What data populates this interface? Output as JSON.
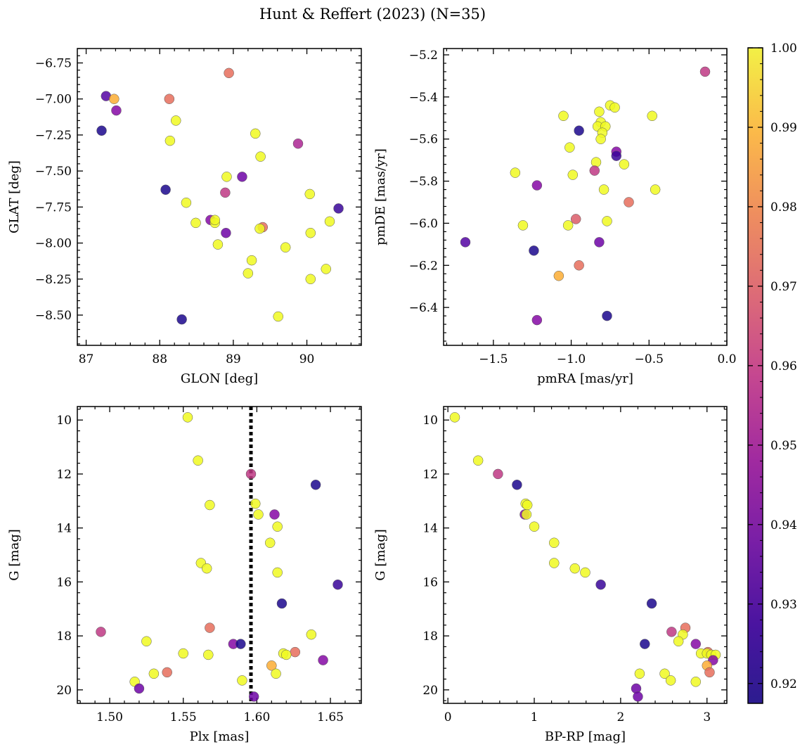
{
  "title": "Hunt & Reffert (2023) (N=35)",
  "chart_data": [
    {
      "type": "scatter",
      "xlabel": "GLON [deg]",
      "ylabel": "GLAT [deg]",
      "xlim": [
        86.88,
        90.74
      ],
      "ylim": [
        -8.71,
        -6.65
      ],
      "y_inverted": false,
      "xticks": [
        87,
        88,
        89,
        90
      ],
      "xtick_labels": [
        "87",
        "88",
        "89",
        "90"
      ],
      "yticks": [
        -8.5,
        -8.25,
        -8.0,
        -7.75,
        -7.5,
        -7.25,
        -7.0,
        -6.75
      ],
      "ytick_labels": [
        "−8.50",
        "−8.25",
        "−8.00",
        "−7.75",
        "−7.50",
        "−7.25",
        "−7.00",
        "−6.75"
      ],
      "points": [
        {
          "x": 87.27,
          "y": -6.98,
          "c": 0.93
        },
        {
          "x": 87.21,
          "y": -7.22,
          "c": 0.92
        },
        {
          "x": 87.38,
          "y": -7.0,
          "c": 0.985
        },
        {
          "x": 87.41,
          "y": -7.08,
          "c": 0.94
        },
        {
          "x": 88.13,
          "y": -7.0,
          "c": 0.97
        },
        {
          "x": 88.94,
          "y": -6.82,
          "c": 0.97
        },
        {
          "x": 88.22,
          "y": -7.15,
          "c": 1.0
        },
        {
          "x": 88.14,
          "y": -7.29,
          "c": 1.0
        },
        {
          "x": 89.3,
          "y": -7.24,
          "c": 1.0
        },
        {
          "x": 89.37,
          "y": -7.4,
          "c": 1.0
        },
        {
          "x": 89.88,
          "y": -7.31,
          "c": 0.95
        },
        {
          "x": 88.08,
          "y": -7.63,
          "c": 0.92
        },
        {
          "x": 88.91,
          "y": -7.54,
          "c": 1.0
        },
        {
          "x": 89.12,
          "y": -7.54,
          "c": 0.935
        },
        {
          "x": 88.89,
          "y": -7.65,
          "c": 0.955
        },
        {
          "x": 88.36,
          "y": -7.72,
          "c": 1.0
        },
        {
          "x": 88.49,
          "y": -7.86,
          "c": 1.0
        },
        {
          "x": 88.69,
          "y": -7.84,
          "c": 0.94
        },
        {
          "x": 88.75,
          "y": -7.86,
          "c": 1.0
        },
        {
          "x": 88.75,
          "y": -7.84,
          "c": 1.0
        },
        {
          "x": 88.9,
          "y": -7.93,
          "c": 0.935
        },
        {
          "x": 88.79,
          "y": -8.01,
          "c": 1.0
        },
        {
          "x": 89.4,
          "y": -7.89,
          "c": 0.97
        },
        {
          "x": 89.36,
          "y": -7.9,
          "c": 1.0
        },
        {
          "x": 89.71,
          "y": -8.03,
          "c": 1.0
        },
        {
          "x": 90.04,
          "y": -7.66,
          "c": 1.0
        },
        {
          "x": 90.05,
          "y": -7.93,
          "c": 1.0
        },
        {
          "x": 90.31,
          "y": -7.85,
          "c": 1.0
        },
        {
          "x": 90.43,
          "y": -7.76,
          "c": 0.925
        },
        {
          "x": 89.25,
          "y": -8.12,
          "c": 1.0
        },
        {
          "x": 89.2,
          "y": -8.21,
          "c": 1.0
        },
        {
          "x": 90.05,
          "y": -8.25,
          "c": 1.0
        },
        {
          "x": 90.26,
          "y": -8.18,
          "c": 1.0
        },
        {
          "x": 89.61,
          "y": -8.51,
          "c": 1.0
        },
        {
          "x": 88.3,
          "y": -8.53,
          "c": 0.92
        }
      ]
    },
    {
      "type": "scatter",
      "xlabel": "pmRA [mas/yr]",
      "ylabel": "pmDE [mas/yr]",
      "xlim": [
        -1.82,
        0.0
      ],
      "ylim": [
        -6.58,
        -5.17
      ],
      "y_inverted": false,
      "xticks": [
        -1.5,
        -1.0,
        -0.5,
        0.0
      ],
      "xtick_labels": [
        "−1.5",
        "−1.0",
        "−0.5",
        "0.0"
      ],
      "yticks": [
        -6.4,
        -6.2,
        -6.0,
        -5.8,
        -5.6,
        -5.4,
        -5.2
      ],
      "ytick_labels": [
        "−6.4",
        "−6.2",
        "−6.0",
        "−5.8",
        "−5.6",
        "−5.4",
        "−5.2"
      ],
      "points": [
        {
          "x": -0.14,
          "y": -5.28,
          "c": 0.955
        },
        {
          "x": -0.75,
          "y": -5.44,
          "c": 1.0
        },
        {
          "x": -0.72,
          "y": -5.45,
          "c": 1.0
        },
        {
          "x": -0.48,
          "y": -5.49,
          "c": 1.0
        },
        {
          "x": -1.05,
          "y": -5.49,
          "c": 1.0
        },
        {
          "x": -0.82,
          "y": -5.47,
          "c": 1.0
        },
        {
          "x": -0.81,
          "y": -5.52,
          "c": 1.0
        },
        {
          "x": -0.83,
          "y": -5.54,
          "c": 1.0
        },
        {
          "x": -0.78,
          "y": -5.54,
          "c": 1.0
        },
        {
          "x": -0.8,
          "y": -5.57,
          "c": 1.0
        },
        {
          "x": -0.95,
          "y": -5.56,
          "c": 0.92
        },
        {
          "x": -0.81,
          "y": -5.6,
          "c": 1.0
        },
        {
          "x": -1.01,
          "y": -5.64,
          "c": 1.0
        },
        {
          "x": -0.71,
          "y": -5.66,
          "c": 0.94
        },
        {
          "x": -0.71,
          "y": -5.68,
          "c": 0.925
        },
        {
          "x": -0.84,
          "y": -5.71,
          "c": 1.0
        },
        {
          "x": -0.66,
          "y": -5.72,
          "c": 1.0
        },
        {
          "x": -1.36,
          "y": -5.76,
          "c": 1.0
        },
        {
          "x": -0.99,
          "y": -5.77,
          "c": 1.0
        },
        {
          "x": -0.85,
          "y": -5.75,
          "c": 0.955
        },
        {
          "x": -1.22,
          "y": -5.82,
          "c": 0.94
        },
        {
          "x": -0.79,
          "y": -5.84,
          "c": 1.0
        },
        {
          "x": -0.46,
          "y": -5.84,
          "c": 1.0
        },
        {
          "x": -0.63,
          "y": -5.9,
          "c": 0.97
        },
        {
          "x": -0.97,
          "y": -5.98,
          "c": 0.965
        },
        {
          "x": -0.77,
          "y": -5.99,
          "c": 1.0
        },
        {
          "x": -1.31,
          "y": -6.01,
          "c": 1.0
        },
        {
          "x": -1.02,
          "y": -6.01,
          "c": 1.0
        },
        {
          "x": -1.68,
          "y": -6.09,
          "c": 0.93
        },
        {
          "x": -0.82,
          "y": -6.09,
          "c": 0.935
        },
        {
          "x": -1.24,
          "y": -6.13,
          "c": 0.92
        },
        {
          "x": -0.95,
          "y": -6.2,
          "c": 0.97
        },
        {
          "x": -1.08,
          "y": -6.25,
          "c": 0.985
        },
        {
          "x": -0.77,
          "y": -6.44,
          "c": 0.92
        },
        {
          "x": -1.22,
          "y": -6.46,
          "c": 0.94
        }
      ]
    },
    {
      "type": "scatter",
      "xlabel": "Plx [mas]",
      "ylabel": "G [mag]",
      "xlim": [
        1.478,
        1.671
      ],
      "ylim": [
        20.5,
        9.5
      ],
      "y_inverted": true,
      "xticks": [
        1.5,
        1.55,
        1.6,
        1.65
      ],
      "xtick_labels": [
        "1.50",
        "1.55",
        "1.60",
        "1.65"
      ],
      "yticks": [
        10,
        12,
        14,
        16,
        18,
        20
      ],
      "ytick_labels": [
        "10",
        "12",
        "14",
        "16",
        "18",
        "20"
      ],
      "vline": 1.596,
      "points": [
        {
          "x": 1.553,
          "y": 9.9,
          "c": 1.0
        },
        {
          "x": 1.56,
          "y": 11.5,
          "c": 1.0
        },
        {
          "x": 1.596,
          "y": 12.0,
          "c": 0.955
        },
        {
          "x": 1.64,
          "y": 12.4,
          "c": 0.92
        },
        {
          "x": 1.568,
          "y": 13.15,
          "c": 1.0
        },
        {
          "x": 1.599,
          "y": 13.1,
          "c": 1.0
        },
        {
          "x": 1.601,
          "y": 13.5,
          "c": 1.0
        },
        {
          "x": 1.612,
          "y": 13.5,
          "c": 0.94
        },
        {
          "x": 1.614,
          "y": 13.95,
          "c": 1.0
        },
        {
          "x": 1.609,
          "y": 14.55,
          "c": 1.0
        },
        {
          "x": 1.562,
          "y": 15.3,
          "c": 1.0
        },
        {
          "x": 1.566,
          "y": 15.5,
          "c": 1.0
        },
        {
          "x": 1.614,
          "y": 15.65,
          "c": 1.0
        },
        {
          "x": 1.655,
          "y": 16.1,
          "c": 0.925
        },
        {
          "x": 1.617,
          "y": 16.8,
          "c": 0.92
        },
        {
          "x": 1.568,
          "y": 17.7,
          "c": 0.97
        },
        {
          "x": 1.494,
          "y": 17.85,
          "c": 0.955
        },
        {
          "x": 1.637,
          "y": 17.95,
          "c": 1.0
        },
        {
          "x": 1.525,
          "y": 18.2,
          "c": 1.0
        },
        {
          "x": 1.584,
          "y": 18.3,
          "c": 0.94
        },
        {
          "x": 1.589,
          "y": 18.3,
          "c": 0.92
        },
        {
          "x": 1.626,
          "y": 18.6,
          "c": 0.97
        },
        {
          "x": 1.618,
          "y": 18.65,
          "c": 1.0
        },
        {
          "x": 1.62,
          "y": 18.7,
          "c": 1.0
        },
        {
          "x": 1.55,
          "y": 18.65,
          "c": 1.0
        },
        {
          "x": 1.567,
          "y": 18.7,
          "c": 1.0
        },
        {
          "x": 1.645,
          "y": 18.9,
          "c": 0.94
        },
        {
          "x": 1.61,
          "y": 19.1,
          "c": 0.985
        },
        {
          "x": 1.53,
          "y": 19.4,
          "c": 1.0
        },
        {
          "x": 1.539,
          "y": 19.35,
          "c": 0.97
        },
        {
          "x": 1.613,
          "y": 19.4,
          "c": 1.0
        },
        {
          "x": 1.59,
          "y": 19.65,
          "c": 1.0
        },
        {
          "x": 1.517,
          "y": 19.7,
          "c": 1.0
        },
        {
          "x": 1.52,
          "y": 19.95,
          "c": 0.935
        },
        {
          "x": 1.598,
          "y": 20.25,
          "c": 0.935
        }
      ]
    },
    {
      "type": "scatter",
      "xlabel": "BP-RP [mag]",
      "ylabel": "G [mag]",
      "xlim": [
        -0.05,
        3.23
      ],
      "ylim": [
        20.5,
        9.5
      ],
      "y_inverted": true,
      "xticks": [
        0,
        1,
        2,
        3
      ],
      "xtick_labels": [
        "0",
        "1",
        "2",
        "3"
      ],
      "yticks": [
        10,
        12,
        14,
        16,
        18,
        20
      ],
      "ytick_labels": [
        "10",
        "12",
        "14",
        "16",
        "18",
        "20"
      ],
      "points": [
        {
          "x": 0.08,
          "y": 9.9,
          "c": 1.0
        },
        {
          "x": 0.35,
          "y": 11.5,
          "c": 1.0
        },
        {
          "x": 0.58,
          "y": 12.0,
          "c": 0.955
        },
        {
          "x": 0.8,
          "y": 12.4,
          "c": 0.92
        },
        {
          "x": 0.9,
          "y": 13.1,
          "c": 1.0
        },
        {
          "x": 0.92,
          "y": 13.15,
          "c": 1.0
        },
        {
          "x": 0.89,
          "y": 13.5,
          "c": 0.94
        },
        {
          "x": 0.91,
          "y": 13.5,
          "c": 1.0
        },
        {
          "x": 1.0,
          "y": 13.95,
          "c": 1.0
        },
        {
          "x": 1.23,
          "y": 14.55,
          "c": 1.0
        },
        {
          "x": 1.23,
          "y": 15.3,
          "c": 1.0
        },
        {
          "x": 1.47,
          "y": 15.5,
          "c": 1.0
        },
        {
          "x": 1.59,
          "y": 15.65,
          "c": 1.0
        },
        {
          "x": 1.77,
          "y": 16.1,
          "c": 0.925
        },
        {
          "x": 2.36,
          "y": 16.8,
          "c": 0.92
        },
        {
          "x": 2.75,
          "y": 17.7,
          "c": 0.97
        },
        {
          "x": 2.59,
          "y": 17.85,
          "c": 0.955
        },
        {
          "x": 2.72,
          "y": 17.95,
          "c": 1.0
        },
        {
          "x": 2.67,
          "y": 18.2,
          "c": 1.0
        },
        {
          "x": 2.28,
          "y": 18.3,
          "c": 0.92
        },
        {
          "x": 2.87,
          "y": 18.3,
          "c": 0.94
        },
        {
          "x": 3.01,
          "y": 18.6,
          "c": 0.97
        },
        {
          "x": 2.93,
          "y": 18.65,
          "c": 1.0
        },
        {
          "x": 3.0,
          "y": 18.65,
          "c": 1.0
        },
        {
          "x": 3.05,
          "y": 18.7,
          "c": 1.0
        },
        {
          "x": 3.1,
          "y": 18.7,
          "c": 1.0
        },
        {
          "x": 3.07,
          "y": 18.9,
          "c": 0.94
        },
        {
          "x": 3.0,
          "y": 19.1,
          "c": 0.985
        },
        {
          "x": 2.22,
          "y": 19.4,
          "c": 1.0
        },
        {
          "x": 2.51,
          "y": 19.4,
          "c": 1.0
        },
        {
          "x": 3.03,
          "y": 19.35,
          "c": 0.97
        },
        {
          "x": 2.58,
          "y": 19.65,
          "c": 1.0
        },
        {
          "x": 2.87,
          "y": 19.7,
          "c": 1.0
        },
        {
          "x": 2.18,
          "y": 19.95,
          "c": 0.935
        },
        {
          "x": 2.2,
          "y": 20.25,
          "c": 0.935
        }
      ]
    }
  ],
  "colorbar": {
    "range": [
      0.9175,
      1.0
    ],
    "ticks": [
      0.92,
      0.93,
      0.94,
      0.95,
      0.96,
      0.97,
      0.98,
      0.99,
      1.0
    ],
    "tick_labels": [
      "0.92",
      "0.93",
      "0.94",
      "0.95",
      "0.96",
      "0.97",
      "0.98",
      "0.99",
      "1.00"
    ],
    "colormap": "plasma"
  }
}
